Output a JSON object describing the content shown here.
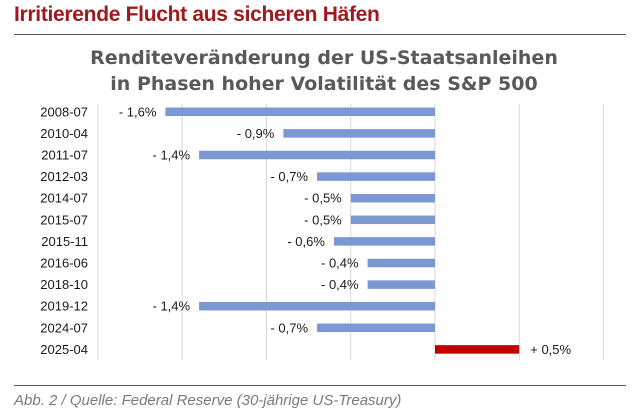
{
  "headline": "Irritierende Flucht aus sicheren Häfen",
  "caption": "Abb. 2 / Quelle: Federal Reserve (30-jährige US-Treasury)",
  "colors": {
    "negative": "#7b98d3",
    "positive": "#c00000",
    "headline": "#a0191e"
  },
  "chart_data": {
    "type": "bar",
    "orientation": "horizontal",
    "title": [
      "Renditeveränderung der US-Staatsanleihen",
      "in Phasen hoher Volatilität des S&P 500"
    ],
    "categories": [
      "2008-07",
      "2010-04",
      "2011-07",
      "2012-03",
      "2014-07",
      "2015-07",
      "2015-11",
      "2016-06",
      "2018-10",
      "2019-12",
      "2024-07",
      "2025-04"
    ],
    "values": [
      -1.6,
      -0.9,
      -1.4,
      -0.7,
      -0.5,
      -0.5,
      -0.6,
      -0.4,
      -0.4,
      -1.4,
      -0.7,
      0.5
    ],
    "labels": [
      "- 1,6%",
      "- 0,9%",
      "- 1,4%",
      "- 0,7%",
      "- 0,5%",
      "- 0,5%",
      "- 0,6%",
      "- 0,4%",
      "- 0,4%",
      "- 1,4%",
      "- 0,7%",
      "+ 0,5%"
    ],
    "xlim": [
      -2.0,
      1.0
    ],
    "gridlines_at": [
      -2.0,
      -1.5,
      -1.0,
      -0.5,
      0,
      0.5,
      1.0
    ],
    "unit": "%",
    "xlabel": "",
    "ylabel": "",
    "legend": "none"
  }
}
